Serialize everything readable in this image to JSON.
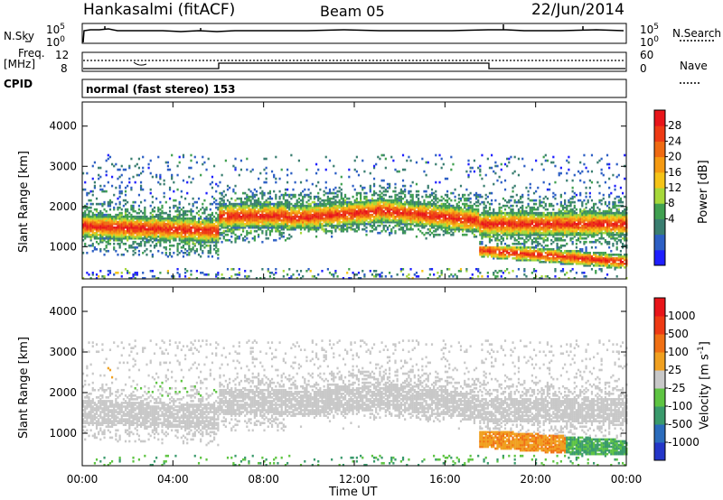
{
  "header": {
    "station": "Hankasalmi (fitACF)",
    "beam": "Beam 05",
    "date": "22/Jun/2014"
  },
  "top_panels": {
    "nsky_label": "N.Sky",
    "nsky_ticks": [
      "10^5",
      "10^0"
    ],
    "nsearch_label": "N.Search",
    "nsearch_ticks": [
      "10^5",
      "10^0"
    ],
    "freq_label_line1": "Freq.",
    "freq_label_line2": "[MHz]",
    "freq_ticks": [
      "12",
      "8"
    ],
    "nave_label": "Nave",
    "nave_ticks": [
      "60",
      "0"
    ],
    "cpid_label": "CPID",
    "cpid_text": "normal (fast stereo) 153"
  },
  "chart_data": [
    {
      "type": "heatmap",
      "name": "power-panel",
      "ylabel": "Slant Range [km]",
      "ylim": [
        200,
        4600
      ],
      "yticks": [
        "4000",
        "3000",
        "2000",
        "1000"
      ],
      "xlim_hours": [
        0,
        24
      ],
      "colorbar": {
        "label": "Power [dB]",
        "ticks": [
          "28",
          "24",
          "20",
          "16",
          "12",
          "8",
          "4"
        ],
        "colors": [
          "#1f1fff",
          "#2d5fc4",
          "#3a7e70",
          "#40a050",
          "#a6d83a",
          "#f5c418",
          "#f59a12",
          "#ef6a12",
          "#ee3a14",
          "#e8151a"
        ]
      }
    },
    {
      "type": "heatmap",
      "name": "velocity-panel",
      "ylabel": "Slant Range [km]",
      "ylim": [
        200,
        4600
      ],
      "yticks": [
        "4000",
        "3000",
        "2000",
        "1000"
      ],
      "xlim_hours": [
        0,
        24
      ],
      "colorbar": {
        "label": "Velocity [m s^-1]",
        "ticks": [
          "1000",
          "500",
          "100",
          "25",
          "-25",
          "-100",
          "-500",
          "-1000"
        ],
        "colors": [
          "#2436c8",
          "#2b6cbc",
          "#3a9a6c",
          "#5ec442",
          "#c8c8c8",
          "#f0a020",
          "#f07014",
          "#ee3a14",
          "#e8151a"
        ]
      }
    }
  ],
  "xaxis": {
    "ticks": [
      "00:00",
      "04:00",
      "08:00",
      "12:00",
      "16:00",
      "20:00",
      "00:00"
    ],
    "label": "Time UT"
  }
}
